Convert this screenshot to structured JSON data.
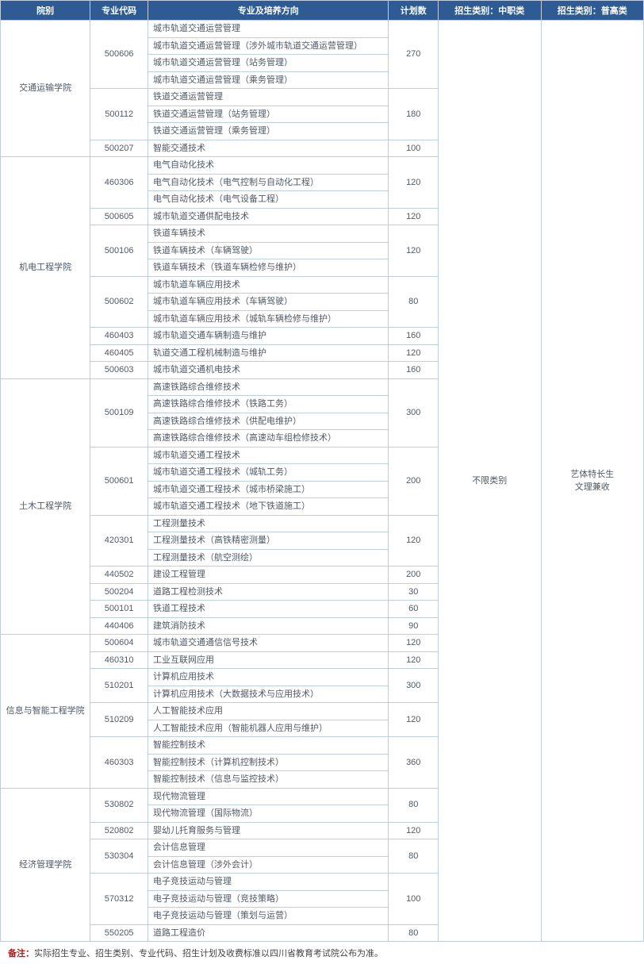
{
  "headers": {
    "dept": "院别",
    "code": "专业代码",
    "direction": "专业及培养方向",
    "plan": "计划数",
    "cat1": "招生类别：中职类",
    "cat2": "招生类别：普高类"
  },
  "cat1_text": "不限类别",
  "cat2_text": "艺体特长生\n文理兼收",
  "footnote_label": "备注：",
  "footnote_text": "实际招生专业、招生类别、专业代码、招生计划及收费标准以四川省教育考试院公布为准。",
  "colors": {
    "header_bg": "#2e5b93",
    "header_fg": "#ffffff",
    "border": "#bfcde0",
    "text": "#505a66",
    "footnote_label": "#b21a1a"
  },
  "departments": [
    {
      "name": "交通运输学院",
      "groups": [
        {
          "code": "500606",
          "plan": "270",
          "directions": [
            "城市轨道交通运营管理",
            "城市轨道交通运营管理（涉外城市轨道交通运营管理）",
            "城市轨道交通运营管理（站务管理）",
            "城市轨道交通运营管理（乘务管理）"
          ]
        },
        {
          "code": "500112",
          "plan": "180",
          "directions": [
            "铁道交通运营管理",
            "铁道交通运营管理（站务管理）",
            "铁道交通运营管理（乘务管理）"
          ]
        },
        {
          "code": "500207",
          "plan": "100",
          "directions": [
            "智能交通技术"
          ]
        }
      ]
    },
    {
      "name": "机电工程学院",
      "groups": [
        {
          "code": "460306",
          "plan": "120",
          "directions": [
            "电气自动化技术",
            "电气自动化技术（电气控制与自动化工程）",
            "电气自动化技术（电气设备工程）"
          ]
        },
        {
          "code": "500605",
          "plan": "120",
          "directions": [
            "城市轨道交通供配电技术"
          ]
        },
        {
          "code": "500106",
          "plan": "120",
          "directions": [
            "铁道车辆技术",
            "铁道车辆技术（车辆驾驶）",
            "铁道车辆技术（铁道车辆检修与维护）"
          ]
        },
        {
          "code": "500602",
          "plan": "80",
          "directions": [
            "城市轨道车辆应用技术",
            "城市轨道车辆应用技术（车辆驾驶）",
            "城市轨道车辆应用技术（城轨车辆检修与维护）"
          ]
        },
        {
          "code": "460403",
          "plan": "160",
          "directions": [
            "城市轨道交通车辆制造与维护"
          ]
        },
        {
          "code": "460405",
          "plan": "120",
          "directions": [
            "轨道交通工程机械制造与维护"
          ]
        },
        {
          "code": "500603",
          "plan": "160",
          "directions": [
            "城市轨道交通机电技术"
          ]
        }
      ]
    },
    {
      "name": "土木工程学院",
      "groups": [
        {
          "code": "500109",
          "plan": "300",
          "directions": [
            "高速铁路综合维修技术",
            "高速铁路综合维修技术（铁路工务）",
            "高速铁路综合维修技术（供配电维护）",
            "高速铁路综合维修技术（高速动车组检修技术）"
          ]
        },
        {
          "code": "500601",
          "plan": "200",
          "directions": [
            "城市轨道交通工程技术",
            "城市轨道交通工程技术（城轨工务）",
            "城市轨道交通工程技术（城市桥梁施工）",
            "城市轨道交通工程技术（地下铁道施工）"
          ]
        },
        {
          "code": "420301",
          "plan": "120",
          "directions": [
            "工程测量技术",
            "工程测量技术（高铁精密测量）",
            "工程测量技术（航空测绘）"
          ]
        },
        {
          "code": "440502",
          "plan": "200",
          "directions": [
            "建设工程管理"
          ]
        },
        {
          "code": "500204",
          "plan": "30",
          "directions": [
            "道路工程检测技术"
          ]
        },
        {
          "code": "500101",
          "plan": "60",
          "directions": [
            "铁道工程技术"
          ]
        },
        {
          "code": "440406",
          "plan": "90",
          "directions": [
            "建筑消防技术"
          ]
        }
      ]
    },
    {
      "name": "信息与智能工程学院",
      "groups": [
        {
          "code": "500604",
          "plan": "120",
          "directions": [
            "城市轨道交通通信信号技术"
          ]
        },
        {
          "code": "460310",
          "plan": "120",
          "directions": [
            "工业互联网应用"
          ]
        },
        {
          "code": "510201",
          "plan": "300",
          "directions": [
            "计算机应用技术",
            "计算机应用技术（大数据技术与应用技术）"
          ]
        },
        {
          "code": "510209",
          "plan": "120",
          "directions": [
            "人工智能技术应用",
            "人工智能技术应用（智能机器人应用与维护）"
          ]
        },
        {
          "code": "460303",
          "plan": "360",
          "directions": [
            "智能控制技术",
            "智能控制技术（计算机控制技术）",
            "智能控制技术（信息与监控技术）"
          ]
        }
      ]
    },
    {
      "name": "经济管理学院",
      "groups": [
        {
          "code": "530802",
          "plan": "80",
          "directions": [
            "现代物流管理",
            "现代物流管理（国际物流）"
          ]
        },
        {
          "code": "520802",
          "plan": "120",
          "directions": [
            "婴幼儿托育服务与管理"
          ]
        },
        {
          "code": "530304",
          "plan": "80",
          "directions": [
            "会计信息管理",
            "会计信息管理（涉外会计）"
          ]
        },
        {
          "code": "570312",
          "plan": "100",
          "directions": [
            "电子竞技运动与管理",
            "电子竞技运动与管理（竞技策略）",
            "电子竞技运动与管理（策划与运营）"
          ]
        },
        {
          "code": "550205",
          "plan": "80",
          "directions": [
            "道路工程造价"
          ]
        }
      ]
    }
  ]
}
